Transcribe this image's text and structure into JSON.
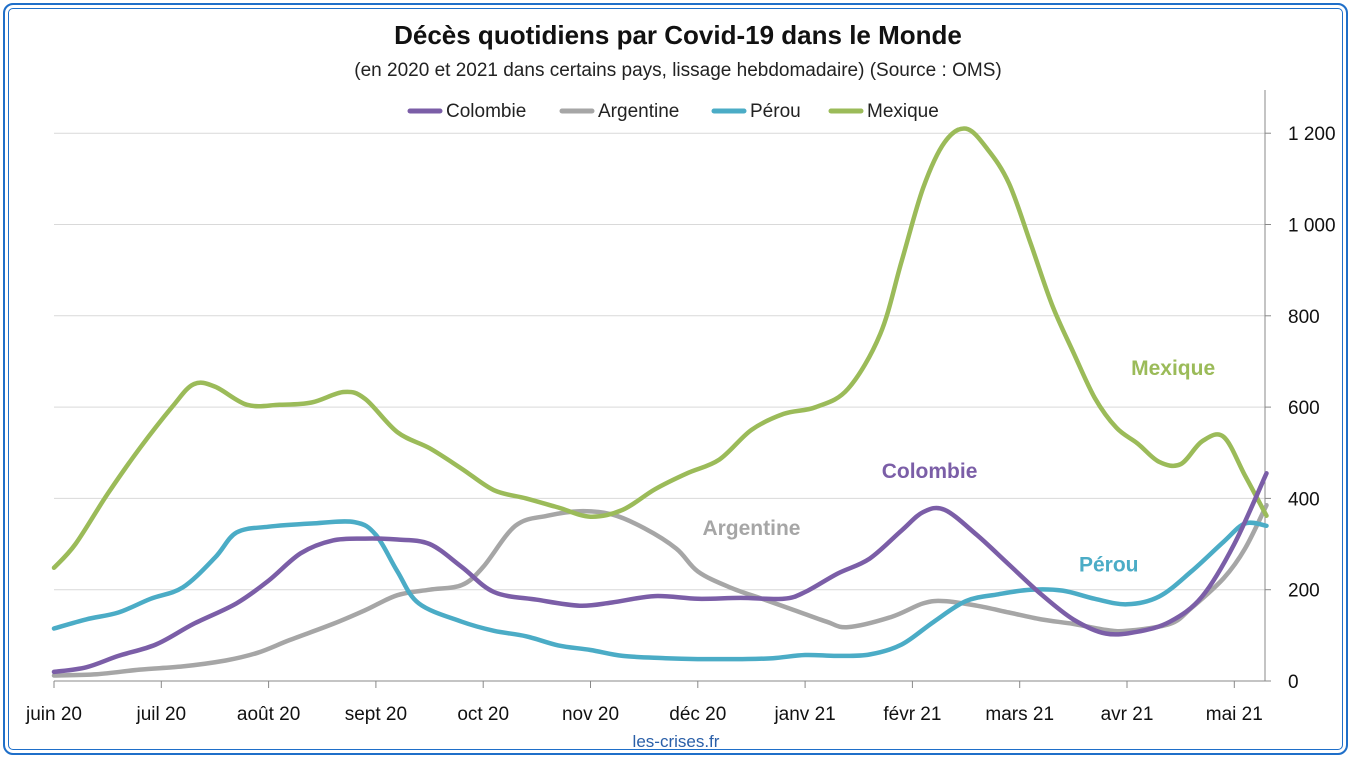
{
  "chart_data": {
    "type": "line",
    "title": "Décès quotidiens par Covid-19 dans le Monde",
    "subtitle": "(en 2020 et 2021 dans certains pays, lissage hebdomadaire) (Source : OMS)",
    "source_note": "les-crises.fr",
    "x_labels": [
      "juin 20",
      "juil 20",
      "août 20",
      "sept 20",
      "oct 20",
      "nov 20",
      "déc 20",
      "janv 21",
      "févr 21",
      "mars 21",
      "avr 21",
      "mai 21"
    ],
    "x_range_months": [
      0,
      11.3
    ],
    "ylim": [
      0,
      1300
    ],
    "y_ticks": [
      0,
      200,
      400,
      600,
      800,
      1000,
      1200
    ],
    "y_tick_labels": [
      "0",
      "200",
      "400",
      "600",
      "800",
      "1 000",
      "1 200"
    ],
    "y_axis_side": "right",
    "grid": true,
    "legend_position": "top",
    "series": [
      {
        "name": "Colombie",
        "color": "#7b5ea7",
        "annotation": "Colombie",
        "points": [
          [
            0,
            20
          ],
          [
            0.3,
            30
          ],
          [
            0.6,
            55
          ],
          [
            0.95,
            80
          ],
          [
            1.3,
            125
          ],
          [
            1.7,
            170
          ],
          [
            2.0,
            220
          ],
          [
            2.3,
            280
          ],
          [
            2.6,
            308
          ],
          [
            2.9,
            312
          ],
          [
            3.2,
            310
          ],
          [
            3.5,
            300
          ],
          [
            3.8,
            250
          ],
          [
            4.1,
            195
          ],
          [
            4.5,
            178
          ],
          [
            4.9,
            165
          ],
          [
            5.2,
            172
          ],
          [
            5.6,
            186
          ],
          [
            6.0,
            180
          ],
          [
            6.4,
            182
          ],
          [
            6.8,
            180
          ],
          [
            7.0,
            195
          ],
          [
            7.3,
            235
          ],
          [
            7.6,
            268
          ],
          [
            7.9,
            330
          ],
          [
            8.1,
            370
          ],
          [
            8.3,
            375
          ],
          [
            8.6,
            320
          ],
          [
            8.9,
            255
          ],
          [
            9.2,
            190
          ],
          [
            9.5,
            135
          ],
          [
            9.8,
            104
          ],
          [
            10.1,
            108
          ],
          [
            10.4,
            130
          ],
          [
            10.7,
            185
          ],
          [
            11.0,
            300
          ],
          [
            11.3,
            455
          ]
        ]
      },
      {
        "name": "Argentine",
        "color": "#a6a6a6",
        "annotation": "Argentine",
        "points": [
          [
            0,
            12
          ],
          [
            0.4,
            15
          ],
          [
            0.8,
            25
          ],
          [
            1.2,
            32
          ],
          [
            1.6,
            45
          ],
          [
            1.9,
            62
          ],
          [
            2.2,
            90
          ],
          [
            2.6,
            125
          ],
          [
            2.9,
            155
          ],
          [
            3.2,
            188
          ],
          [
            3.5,
            200
          ],
          [
            3.8,
            210
          ],
          [
            4.0,
            250
          ],
          [
            4.3,
            340
          ],
          [
            4.6,
            362
          ],
          [
            4.9,
            372
          ],
          [
            5.2,
            365
          ],
          [
            5.5,
            335
          ],
          [
            5.8,
            290
          ],
          [
            6.0,
            240
          ],
          [
            6.3,
            205
          ],
          [
            6.6,
            180
          ],
          [
            6.9,
            155
          ],
          [
            7.2,
            130
          ],
          [
            7.4,
            118
          ],
          [
            7.8,
            140
          ],
          [
            8.1,
            170
          ],
          [
            8.3,
            175
          ],
          [
            8.6,
            165
          ],
          [
            8.9,
            150
          ],
          [
            9.2,
            135
          ],
          [
            9.5,
            125
          ],
          [
            9.8,
            112
          ],
          [
            10.0,
            110
          ],
          [
            10.4,
            125
          ],
          [
            10.6,
            160
          ],
          [
            10.9,
            225
          ],
          [
            11.1,
            290
          ],
          [
            11.3,
            385
          ]
        ]
      },
      {
        "name": "Pérou",
        "color": "#4bacc6",
        "annotation": "Pérou",
        "points": [
          [
            0,
            115
          ],
          [
            0.3,
            135
          ],
          [
            0.6,
            150
          ],
          [
            0.9,
            180
          ],
          [
            1.2,
            205
          ],
          [
            1.5,
            270
          ],
          [
            1.7,
            325
          ],
          [
            2.0,
            338
          ],
          [
            2.4,
            345
          ],
          [
            2.8,
            348
          ],
          [
            3.0,
            320
          ],
          [
            3.2,
            240
          ],
          [
            3.4,
            170
          ],
          [
            3.8,
            130
          ],
          [
            4.1,
            110
          ],
          [
            4.4,
            98
          ],
          [
            4.7,
            78
          ],
          [
            5.0,
            68
          ],
          [
            5.3,
            55
          ],
          [
            5.7,
            50
          ],
          [
            6.0,
            48
          ],
          [
            6.4,
            48
          ],
          [
            6.7,
            50
          ],
          [
            7.0,
            57
          ],
          [
            7.3,
            55
          ],
          [
            7.6,
            58
          ],
          [
            7.9,
            80
          ],
          [
            8.2,
            130
          ],
          [
            8.5,
            175
          ],
          [
            8.8,
            190
          ],
          [
            9.1,
            200
          ],
          [
            9.4,
            198
          ],
          [
            9.7,
            180
          ],
          [
            10.0,
            168
          ],
          [
            10.3,
            185
          ],
          [
            10.6,
            240
          ],
          [
            10.9,
            305
          ],
          [
            11.1,
            345
          ],
          [
            11.3,
            340
          ]
        ]
      },
      {
        "name": "Mexique",
        "color": "#9bbb59",
        "annotation": "Mexique",
        "points": [
          [
            0,
            248
          ],
          [
            0.2,
            300
          ],
          [
            0.5,
            410
          ],
          [
            0.8,
            510
          ],
          [
            1.1,
            600
          ],
          [
            1.3,
            650
          ],
          [
            1.5,
            645
          ],
          [
            1.8,
            605
          ],
          [
            2.1,
            605
          ],
          [
            2.4,
            610
          ],
          [
            2.7,
            633
          ],
          [
            2.9,
            618
          ],
          [
            3.2,
            545
          ],
          [
            3.5,
            510
          ],
          [
            3.8,
            465
          ],
          [
            4.1,
            418
          ],
          [
            4.4,
            400
          ],
          [
            4.7,
            380
          ],
          [
            5.0,
            360
          ],
          [
            5.3,
            375
          ],
          [
            5.6,
            420
          ],
          [
            5.9,
            455
          ],
          [
            6.2,
            485
          ],
          [
            6.5,
            550
          ],
          [
            6.8,
            585
          ],
          [
            7.1,
            600
          ],
          [
            7.4,
            640
          ],
          [
            7.7,
            760
          ],
          [
            7.9,
            920
          ],
          [
            8.1,
            1080
          ],
          [
            8.3,
            1180
          ],
          [
            8.5,
            1210
          ],
          [
            8.7,
            1165
          ],
          [
            8.9,
            1090
          ],
          [
            9.1,
            960
          ],
          [
            9.3,
            825
          ],
          [
            9.5,
            720
          ],
          [
            9.7,
            620
          ],
          [
            9.9,
            555
          ],
          [
            10.1,
            520
          ],
          [
            10.3,
            480
          ],
          [
            10.5,
            475
          ],
          [
            10.7,
            525
          ],
          [
            10.9,
            535
          ],
          [
            11.1,
            450
          ],
          [
            11.3,
            362
          ]
        ]
      }
    ]
  }
}
